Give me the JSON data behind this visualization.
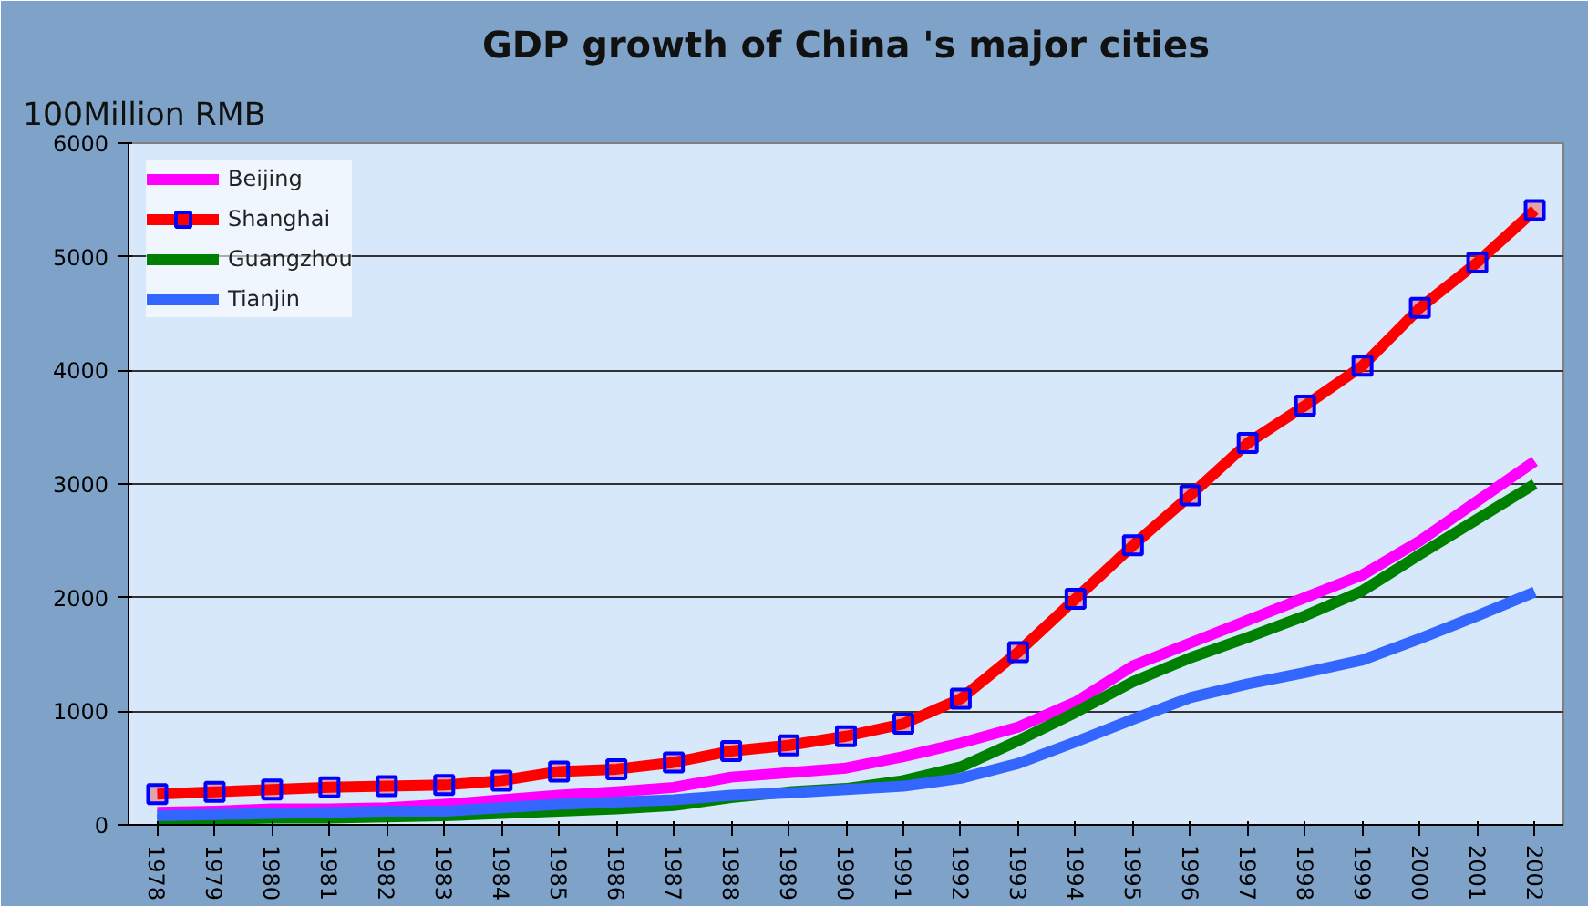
{
  "chart_data": {
    "type": "line",
    "title": "GDP growth of China 's major cities",
    "ylabel": "100Million RMB",
    "categories": [
      "1978",
      "1979",
      "1980",
      "1981",
      "1982",
      "1983",
      "1984",
      "1985",
      "1986",
      "1987",
      "1988",
      "1989",
      "1990",
      "1991",
      "1992",
      "1993",
      "1994",
      "1995",
      "1996",
      "1997",
      "1998",
      "1999",
      "2000",
      "2001",
      "2002"
    ],
    "series": [
      {
        "name": "Beijing",
        "color": "#ff00ff",
        "marker": "none",
        "values": [
          110,
          120,
          140,
          140,
          150,
          180,
          220,
          260,
          290,
          330,
          420,
          460,
          500,
          600,
          720,
          860,
          1080,
          1400,
          1600,
          1800,
          2000,
          2200,
          2500,
          2850,
          3200
        ]
      },
      {
        "name": "Shanghai",
        "color": "#ff0000",
        "marker": "square",
        "values": [
          270,
          290,
          310,
          330,
          340,
          350,
          390,
          470,
          490,
          550,
          650,
          700,
          780,
          890,
          1110,
          1520,
          1990,
          2460,
          2900,
          3360,
          3690,
          4040,
          4550,
          4950,
          5410
        ]
      },
      {
        "name": "Guangzhou",
        "color": "#008000",
        "marker": "none",
        "values": [
          40,
          50,
          60,
          60,
          70,
          80,
          100,
          120,
          140,
          170,
          240,
          290,
          320,
          390,
          510,
          740,
          990,
          1260,
          1470,
          1650,
          1840,
          2060,
          2380,
          2690,
          3000
        ]
      },
      {
        "name": "Tianjin",
        "color": "#3366ff",
        "marker": "none",
        "values": [
          80,
          90,
          100,
          110,
          120,
          120,
          150,
          180,
          200,
          220,
          260,
          280,
          310,
          340,
          410,
          540,
          730,
          930,
          1120,
          1240,
          1340,
          1450,
          1640,
          1840,
          2050
        ]
      }
    ],
    "ylim": [
      0,
      6000
    ],
    "yticks": [
      0,
      1000,
      2000,
      3000,
      4000,
      5000,
      6000
    ],
    "grid": "y",
    "legend": "top left",
    "line_style": "solid"
  }
}
